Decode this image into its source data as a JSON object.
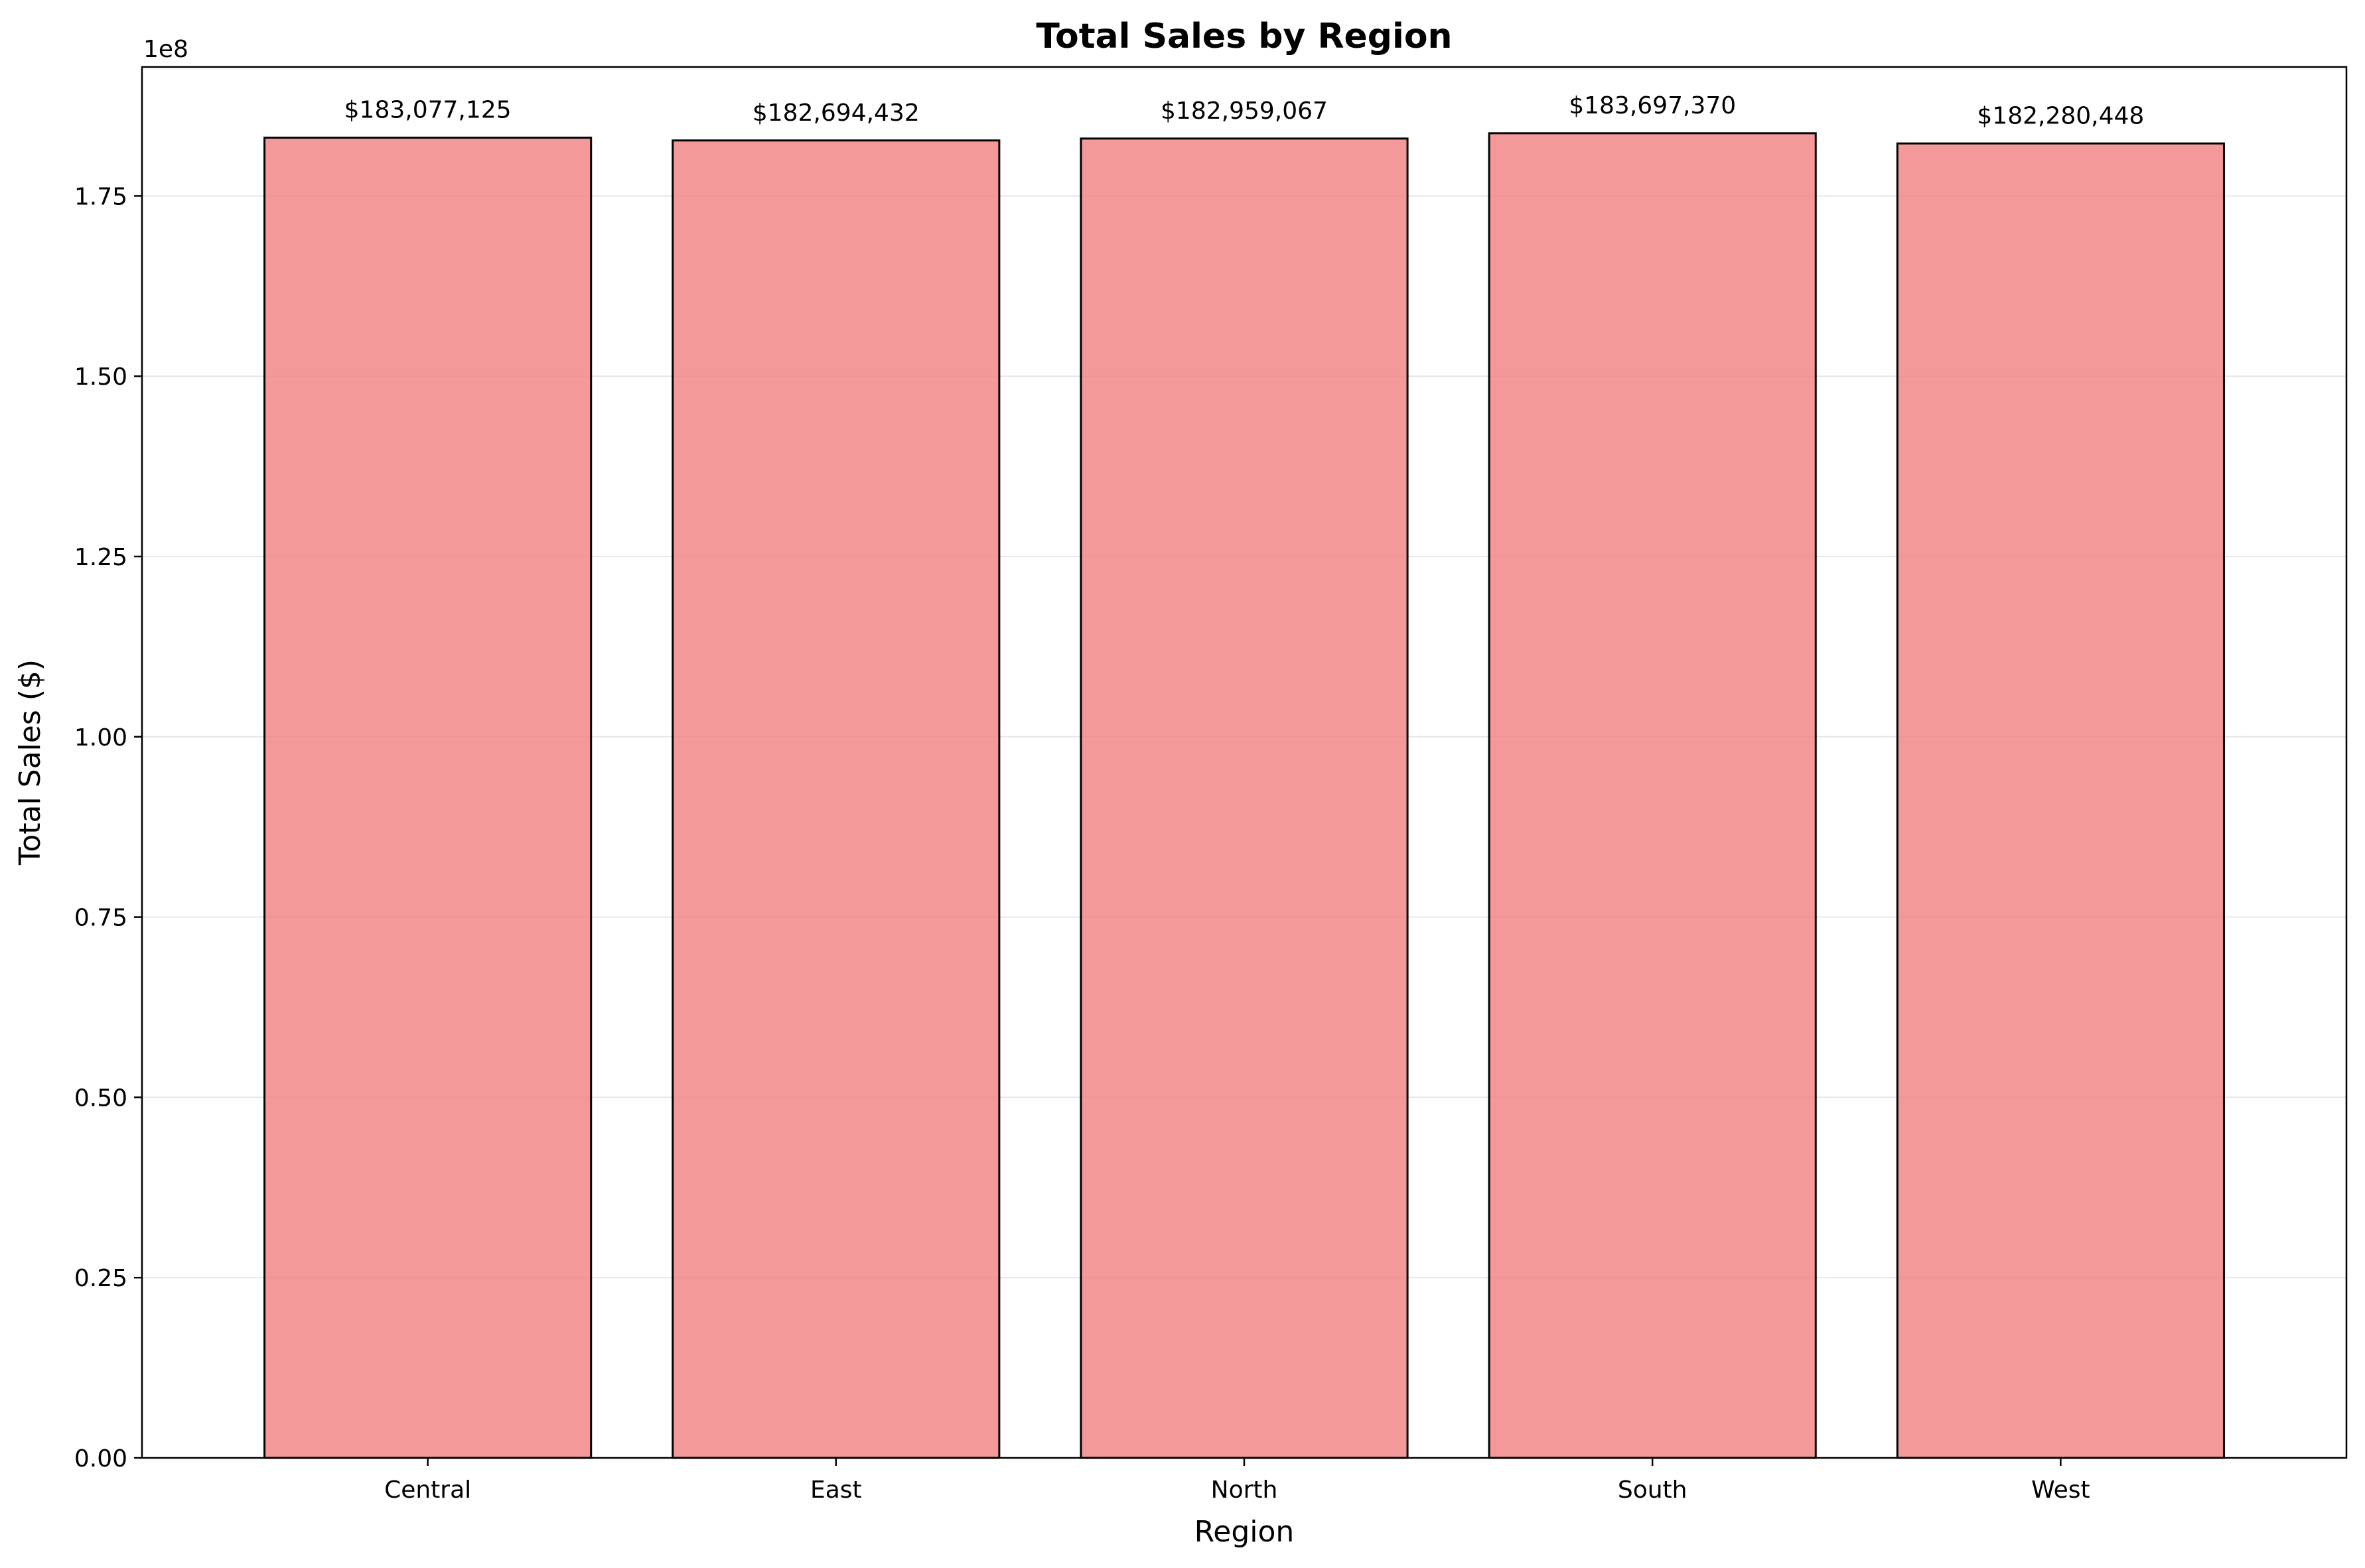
{
  "chart_data": {
    "type": "bar",
    "title": "Total Sales by Region",
    "xlabel": "Region",
    "ylabel": "Total Sales ($)",
    "y_offset_label": "1e8",
    "categories": [
      "Central",
      "East",
      "North",
      "South",
      "West"
    ],
    "values": [
      183077125,
      182694432,
      182959067,
      183697370,
      182280448
    ],
    "value_labels": [
      "$183,077,125",
      "$182,694,432",
      "$182,959,067",
      "$183,697,370",
      "$182,280,448"
    ],
    "y_ticks": [
      0,
      25000000,
      50000000,
      75000000,
      100000000,
      125000000,
      150000000,
      175000000
    ],
    "y_tick_labels": [
      "0.00",
      "0.25",
      "0.50",
      "0.75",
      "1.00",
      "1.25",
      "1.50",
      "1.75"
    ],
    "ylim": [
      0,
      192882000
    ],
    "grid": "y-axis",
    "legend": "none",
    "colors": {
      "bar_fill": "#f08080",
      "bar_edge": "#000000",
      "grid": "#e6e6e6"
    }
  }
}
